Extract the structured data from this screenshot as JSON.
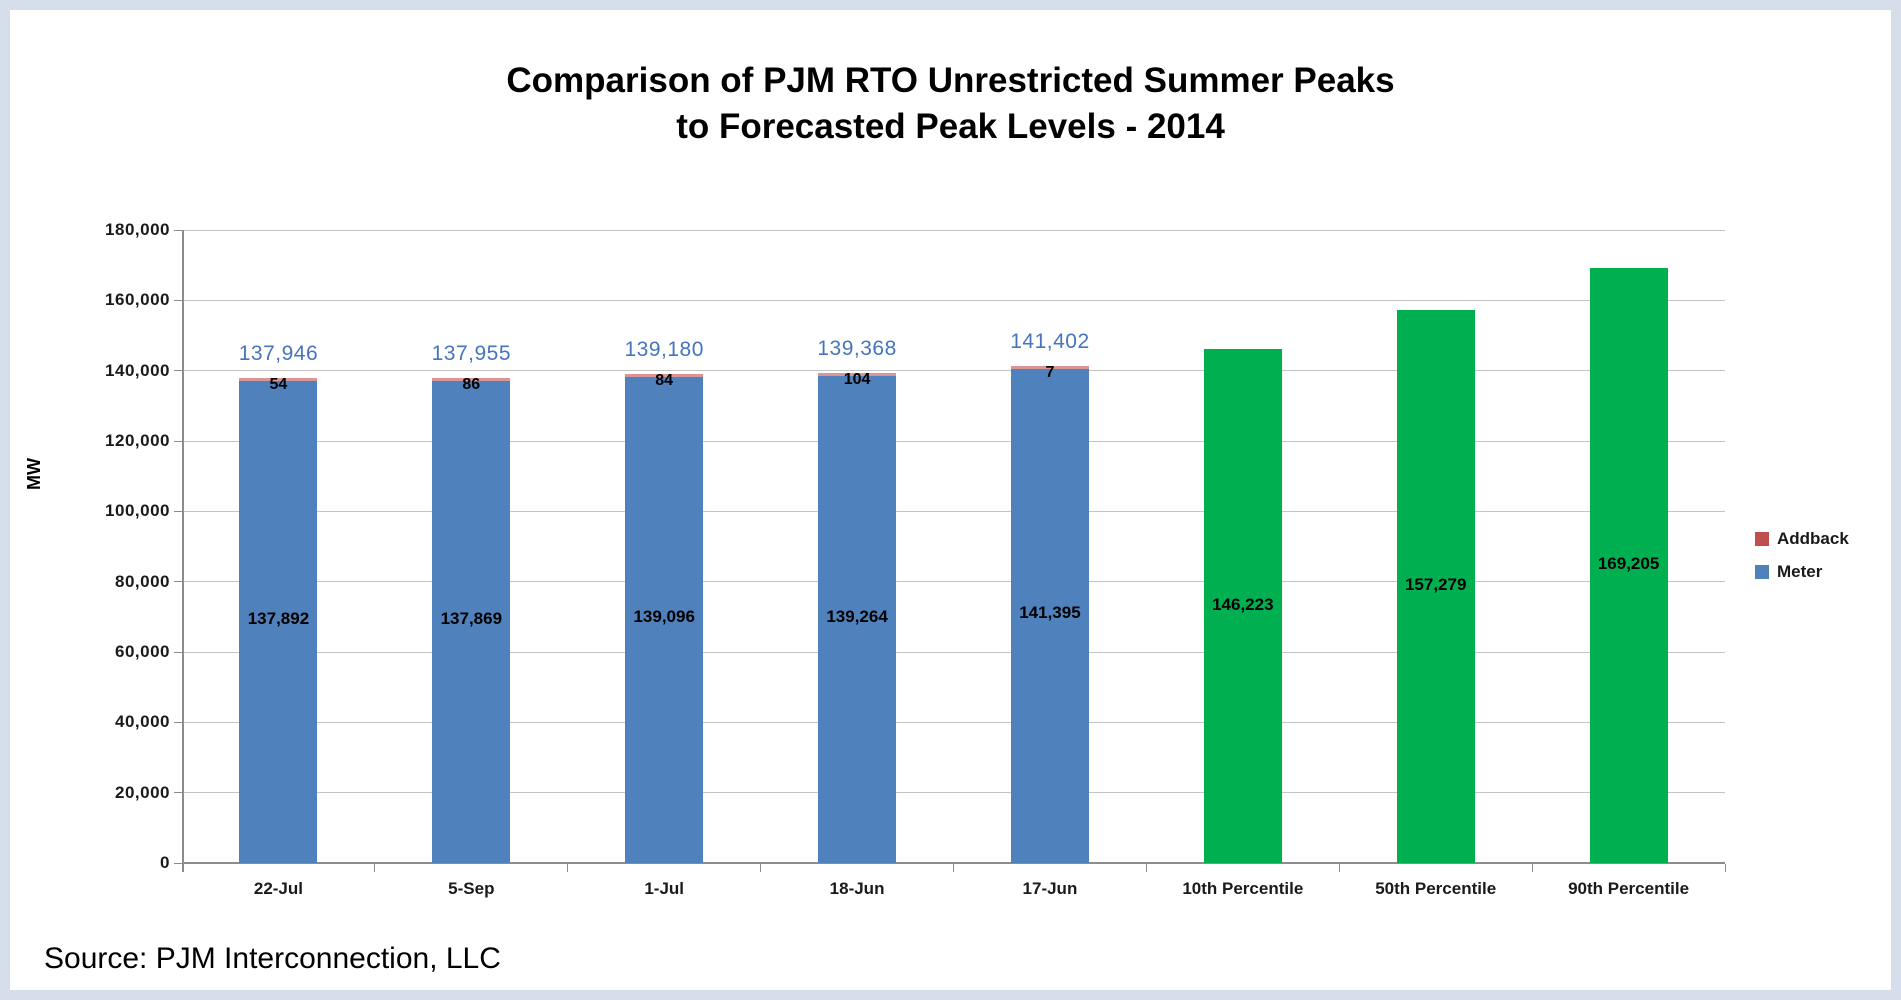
{
  "page": {
    "title_line1": "Comparison of PJM RTO Unrestricted Summer Peaks",
    "title_line2": "to Forecasted Peak Levels - 2014",
    "ylabel": "MW",
    "source": "Source: PJM Interconnection, LLC"
  },
  "colors": {
    "meter_blue": "#4F81BD",
    "addback_red": "#C0504D",
    "addback_sliver": "#D99694",
    "forecast_green": "#00B050",
    "total_label_blue": "#4575BE",
    "gridline": "#C4C4C4",
    "axis": "#8C8C8C",
    "frame": "#D6DEEB"
  },
  "chart_data": {
    "type": "bar",
    "stacked": true,
    "title": "Comparison of PJM RTO Unrestricted Summer Peaks to Forecasted Peak Levels - 2014",
    "xlabel": "",
    "ylabel": "MW",
    "ylim": [
      0,
      180000
    ],
    "ytick_step": 20000,
    "y_tick_labels": [
      "0",
      "20,000",
      "40,000",
      "60,000",
      "80,000",
      "100,000",
      "120,000",
      "140,000",
      "160,000",
      "180,000"
    ],
    "grid": true,
    "legend_position": "right",
    "categories": [
      "22-Jul",
      "5-Sep",
      "1-Jul",
      "18-Jun",
      "17-Jun",
      "10th Percentile",
      "50th Percentile",
      "90th Percentile"
    ],
    "series": [
      {
        "name": "Meter",
        "color": "#4F81BD",
        "values": [
          137892,
          137869,
          139096,
          139264,
          141395,
          null,
          null,
          null
        ]
      },
      {
        "name": "Addback",
        "color": "#C0504D",
        "values": [
          54,
          86,
          84,
          104,
          7,
          null,
          null,
          null
        ]
      },
      {
        "name": "Forecast",
        "color": "#00B050",
        "in_legend": false,
        "values": [
          null,
          null,
          null,
          null,
          null,
          146223,
          157279,
          169205
        ]
      }
    ],
    "bars": [
      {
        "category": "22-Jul",
        "kind": "stacked",
        "meter": 137892,
        "addback": 54,
        "total": 137946,
        "meter_label": "137,892",
        "addback_label": "54",
        "total_label": "137,946"
      },
      {
        "category": "5-Sep",
        "kind": "stacked",
        "meter": 137869,
        "addback": 86,
        "total": 137955,
        "meter_label": "137,869",
        "addback_label": "86",
        "total_label": "137,955"
      },
      {
        "category": "1-Jul",
        "kind": "stacked",
        "meter": 139096,
        "addback": 84,
        "total": 139180,
        "meter_label": "139,096",
        "addback_label": "84",
        "total_label": "139,180"
      },
      {
        "category": "18-Jun",
        "kind": "stacked",
        "meter": 139264,
        "addback": 104,
        "total": 139368,
        "meter_label": "139,264",
        "addback_label": "104",
        "total_label": "139,368"
      },
      {
        "category": "17-Jun",
        "kind": "stacked",
        "meter": 141395,
        "addback": 7,
        "total": 141402,
        "meter_label": "141,395",
        "addback_label": "7",
        "total_label": "141,402"
      },
      {
        "category": "10th Percentile",
        "kind": "forecast",
        "value": 146223,
        "label": "146,223"
      },
      {
        "category": "50th Percentile",
        "kind": "forecast",
        "value": 157279,
        "label": "157,279"
      },
      {
        "category": "90th Percentile",
        "kind": "forecast",
        "value": 169205,
        "label": "169,205"
      }
    ],
    "legend": [
      {
        "label": "Addback",
        "color": "#C0504D"
      },
      {
        "label": "Meter",
        "color": "#4F81BD"
      }
    ]
  }
}
